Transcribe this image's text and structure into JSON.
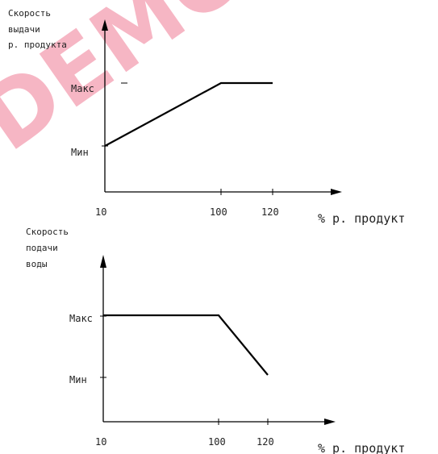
{
  "watermark": {
    "text": "DEMO",
    "color": "#e8305a"
  },
  "chart_data": [
    {
      "type": "line",
      "ylabel_lines": [
        "Скорость",
        "выдачи",
        "р. продукта"
      ],
      "xlabel": "% р. продукт",
      "xticks": [
        "10",
        "100",
        "120"
      ],
      "yticks": [
        "Мин",
        "Макс"
      ],
      "series": [
        {
          "x": [
            10,
            100,
            120
          ],
          "y": [
            "Мин",
            "Макс",
            "Макс"
          ]
        }
      ]
    },
    {
      "type": "line",
      "ylabel_lines": [
        "Скорость",
        "подачи",
        "воды"
      ],
      "xlabel": "% р. продукт",
      "xticks": [
        "10",
        "100",
        "120"
      ],
      "yticks": [
        "Макс",
        "Мин"
      ],
      "series": [
        {
          "x": [
            10,
            100,
            120
          ],
          "y": [
            "Макс",
            "Макс",
            "Мин"
          ]
        }
      ]
    }
  ]
}
